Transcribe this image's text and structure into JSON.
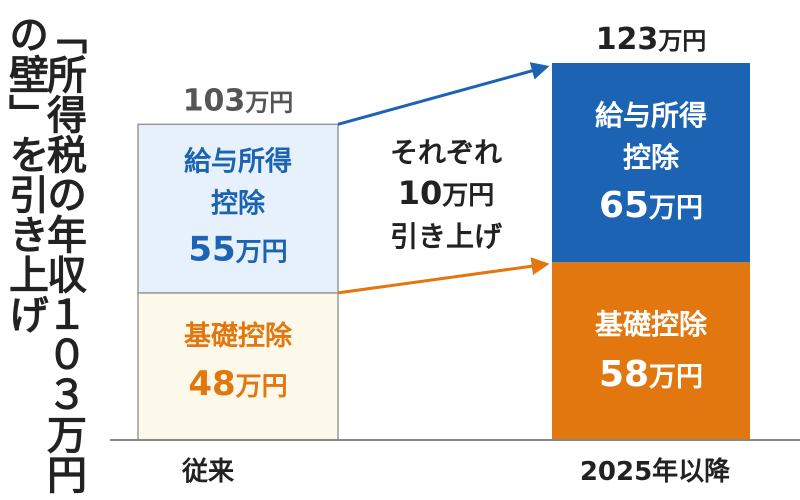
{
  "title": {
    "line1": "「所得税の年収１０３万円",
    "line2": "の壁」を引き上げ"
  },
  "colors": {
    "employment_income_old": "#e6f1fb",
    "employment_income_new": "#1c63b3",
    "basic_old": "#fdf9ea",
    "basic_new": "#e2770f",
    "text_blue": "#1c63b3",
    "text_orange": "#e2770f",
    "axis_text": "#222222",
    "total_old_text": "#555555"
  },
  "chart_data": {
    "type": "bar",
    "stacked": true,
    "categories": [
      "従来",
      "2025年以降"
    ],
    "unit": "万円",
    "series": [
      {
        "name": "基礎控除",
        "values": [
          48,
          58
        ]
      },
      {
        "name": "給与所得控除",
        "values": [
          55,
          65
        ]
      }
    ],
    "totals": [
      {
        "number": "103",
        "unit": "万円"
      },
      {
        "number": "123",
        "unit": "万円"
      }
    ],
    "segment_labels": {
      "old_top": {
        "lines": [
          "給与所得",
          "控除"
        ],
        "number": "55",
        "unit": "万円"
      },
      "old_bottom": {
        "lines": [
          "基礎控除"
        ],
        "number": "48",
        "unit": "万円"
      },
      "new_top": {
        "lines": [
          "給与所得",
          "控除"
        ],
        "number": "65",
        "unit": "万円"
      },
      "new_bottom": {
        "lines": [
          "基礎控除"
        ],
        "number": "58",
        "unit": "万円"
      }
    },
    "annotation": {
      "line1": "それぞれ",
      "number": "10",
      "unit": "万円",
      "line3": "引き上げ"
    },
    "ylim": [
      0,
      123
    ]
  }
}
